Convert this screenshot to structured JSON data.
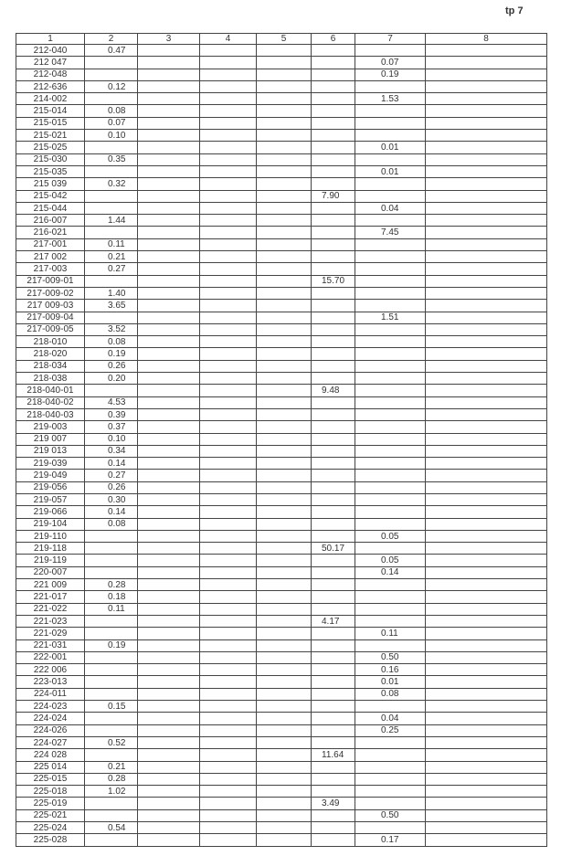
{
  "page_ref": "tp 7",
  "headers": [
    "1",
    "2",
    "3",
    "4",
    "5",
    "6",
    "7",
    "8"
  ],
  "rows": [
    {
      "c1": "212-040",
      "c2": "0.47",
      "c6": "",
      "c7": ""
    },
    {
      "c1": "212 047",
      "c2": "",
      "c6": "",
      "c7": "0.07"
    },
    {
      "c1": "212-048",
      "c2": "",
      "c6": "",
      "c7": "0.19"
    },
    {
      "c1": "212-636",
      "c2": "0.12",
      "c6": "",
      "c7": ""
    },
    {
      "c1": "214-002",
      "c2": "",
      "c6": "",
      "c7": "1.53"
    },
    {
      "c1": "215-014",
      "c2": "0.08",
      "c6": "",
      "c7": ""
    },
    {
      "c1": "215-015",
      "c2": "0.07",
      "c6": "",
      "c7": ""
    },
    {
      "c1": "215-021",
      "c2": "0.10",
      "c6": "",
      "c7": ""
    },
    {
      "c1": "215-025",
      "c2": "",
      "c6": "",
      "c7": "0.01"
    },
    {
      "c1": "215-030",
      "c2": "0.35",
      "c6": "",
      "c7": ""
    },
    {
      "c1": "215-035",
      "c2": "",
      "c6": "",
      "c7": "0.01"
    },
    {
      "c1": "215 039",
      "c2": "0.32",
      "c6": "",
      "c7": ""
    },
    {
      "c1": "215-042",
      "c2": "",
      "c6": "7.90",
      "c7": ""
    },
    {
      "c1": "215-044",
      "c2": "",
      "c6": "",
      "c7": "0.04"
    },
    {
      "c1": "216-007",
      "c2": "1.44",
      "c6": "",
      "c7": ""
    },
    {
      "c1": "216-021",
      "c2": "",
      "c6": "",
      "c7": "7.45"
    },
    {
      "c1": "217-001",
      "c2": "0.11",
      "c6": "",
      "c7": ""
    },
    {
      "c1": "217 002",
      "c2": "0.21",
      "c6": "",
      "c7": ""
    },
    {
      "c1": "217-003",
      "c2": "0.27",
      "c6": "",
      "c7": ""
    },
    {
      "c1": "217-009-01",
      "c2": "",
      "c6": "15.70",
      "c7": ""
    },
    {
      "c1": "217-009-02",
      "c2": "1.40",
      "c6": "",
      "c7": ""
    },
    {
      "c1": "217 009-03",
      "c2": "3.65",
      "c6": "",
      "c7": ""
    },
    {
      "c1": "217-009-04",
      "c2": "",
      "c6": "",
      "c7": "1.51"
    },
    {
      "c1": "217-009-05",
      "c2": "3.52",
      "c6": "",
      "c7": ""
    },
    {
      "c1": "218-010",
      "c2": "0.08",
      "c6": "",
      "c7": ""
    },
    {
      "c1": "218-020",
      "c2": "0.19",
      "c6": "",
      "c7": ""
    },
    {
      "c1": "218-034",
      "c2": "0.26",
      "c6": "",
      "c7": ""
    },
    {
      "c1": "218-038",
      "c2": "0.20",
      "c6": "",
      "c7": ""
    },
    {
      "c1": "218-040-01",
      "c2": "",
      "c6": "9.48",
      "c7": ""
    },
    {
      "c1": "218-040-02",
      "c2": "4.53",
      "c6": "",
      "c7": ""
    },
    {
      "c1": "218-040-03",
      "c2": "0.39",
      "c6": "",
      "c7": ""
    },
    {
      "c1": "219-003",
      "c2": "0.37",
      "c6": "",
      "c7": ""
    },
    {
      "c1": "219 007",
      "c2": "0.10",
      "c6": "",
      "c7": ""
    },
    {
      "c1": "219 013",
      "c2": "0.34",
      "c6": "",
      "c7": ""
    },
    {
      "c1": "219-039",
      "c2": "0.14",
      "c6": "",
      "c7": ""
    },
    {
      "c1": "219-049",
      "c2": "0.27",
      "c6": "",
      "c7": ""
    },
    {
      "c1": "219-056",
      "c2": "0.26",
      "c6": "",
      "c7": ""
    },
    {
      "c1": "219-057",
      "c2": "0.30",
      "c6": "",
      "c7": ""
    },
    {
      "c1": "219-066",
      "c2": "0.14",
      "c6": "",
      "c7": ""
    },
    {
      "c1": "219-104",
      "c2": "0.08",
      "c6": "",
      "c7": ""
    },
    {
      "c1": "219-110",
      "c2": "",
      "c6": "",
      "c7": "0.05"
    },
    {
      "c1": "219-118",
      "c2": "",
      "c6": "50.17",
      "c7": ""
    },
    {
      "c1": "219-119",
      "c2": "",
      "c6": "",
      "c7": "0.05"
    },
    {
      "c1": "220-007",
      "c2": "",
      "c6": "",
      "c7": "0.14"
    },
    {
      "c1": "221 009",
      "c2": "0.28",
      "c6": "",
      "c7": ""
    },
    {
      "c1": "221-017",
      "c2": "0.18",
      "c6": "",
      "c7": ""
    },
    {
      "c1": "221-022",
      "c2": "0.11",
      "c6": "",
      "c7": ""
    },
    {
      "c1": "221-023",
      "c2": "",
      "c6": "4.17",
      "c7": ""
    },
    {
      "c1": "221-029",
      "c2": "",
      "c6": "",
      "c7": "0.11"
    },
    {
      "c1": "221-031",
      "c2": "0.19",
      "c6": "",
      "c7": ""
    },
    {
      "c1": "222-001",
      "c2": "",
      "c6": "",
      "c7": "0.50"
    },
    {
      "c1": "222 006",
      "c2": "",
      "c6": "",
      "c7": "0.16"
    },
    {
      "c1": "223-013",
      "c2": "",
      "c6": "",
      "c7": "0.01"
    },
    {
      "c1": "224-011",
      "c2": "",
      "c6": "",
      "c7": "0.08"
    },
    {
      "c1": "224-023",
      "c2": "0.15",
      "c6": "",
      "c7": ""
    },
    {
      "c1": "224-024",
      "c2": "",
      "c6": "",
      "c7": "0.04"
    },
    {
      "c1": "224-026",
      "c2": "",
      "c6": "",
      "c7": "0.25"
    },
    {
      "c1": "224-027",
      "c2": "0.52",
      "c6": "",
      "c7": ""
    },
    {
      "c1": "224 028",
      "c2": "",
      "c6": "11.64",
      "c7": ""
    },
    {
      "c1": "225 014",
      "c2": "0.21",
      "c6": "",
      "c7": ""
    },
    {
      "c1": "225-015",
      "c2": "0.28",
      "c6": "",
      "c7": ""
    },
    {
      "c1": "225-018",
      "c2": "1.02",
      "c6": "",
      "c7": ""
    },
    {
      "c1": "225-019",
      "c2": "",
      "c6": "3.49",
      "c7": ""
    },
    {
      "c1": "225-021",
      "c2": "",
      "c6": "",
      "c7": "0.50"
    },
    {
      "c1": "225-024",
      "c2": "0.54",
      "c6": "",
      "c7": ""
    },
    {
      "c1": "225-028",
      "c2": "",
      "c6": "",
      "c7": "0.17"
    }
  ]
}
